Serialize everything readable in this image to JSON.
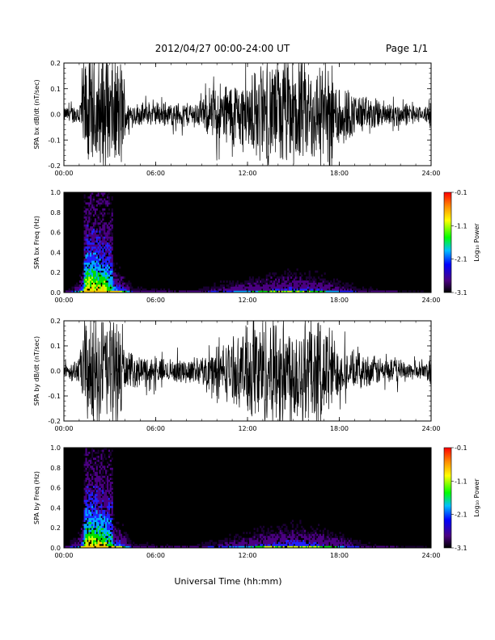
{
  "header": {
    "title": "2012/04/27  00:00-24:00 UT",
    "page": "Page 1/1"
  },
  "footer": {
    "xlabel": "Universal Time (hh:mm)"
  },
  "chart_data": [
    {
      "type": "line",
      "ylabel": "SPA bx dB/dt (nT/sec)",
      "xlim": [
        0,
        24
      ],
      "ylim": [
        -0.2,
        0.2
      ],
      "x_ticks": [
        "00:00",
        "06:00",
        "12:00",
        "18:00",
        "24:00"
      ],
      "y_ticks": [
        "0.2",
        "0.1",
        "0.0",
        "-0.1",
        "-0.2"
      ],
      "envelope": {
        "x_hours": [
          0,
          1,
          1.3,
          3.8,
          4.2,
          7,
          9,
          10,
          12,
          13,
          14.5,
          16,
          17.5,
          19,
          21,
          22.5,
          23.5,
          24
        ],
        "amplitude": [
          0.03,
          0.05,
          0.25,
          0.25,
          0.05,
          0.05,
          0.06,
          0.14,
          0.16,
          0.22,
          0.25,
          0.22,
          0.2,
          0.09,
          0.06,
          0.05,
          0.03,
          0.07
        ]
      }
    },
    {
      "type": "heatmap",
      "ylabel": "SPA bx Freq (Hz)",
      "xlim": [
        0,
        24
      ],
      "ylim": [
        0.0,
        1.0
      ],
      "x_ticks": [
        "00:00",
        "06:00",
        "12:00",
        "18:00",
        "24:00"
      ],
      "y_ticks": [
        "1.0",
        "0.8",
        "0.6",
        "0.4",
        "0.2",
        "0.0"
      ],
      "colorbar": {
        "label": "Log₁₀ Power",
        "ticks": [
          "-0.1",
          "-1.1",
          "-2.1",
          "-3.1"
        ],
        "range": [
          -3.1,
          -0.1
        ]
      },
      "activity": {
        "x_hours": [
          0,
          1,
          1.5,
          2.5,
          3.5,
          4.5,
          8,
          10,
          12,
          13.5,
          15,
          16.5,
          18,
          19.5,
          22,
          24
        ],
        "level": [
          0.05,
          0.3,
          1.0,
          0.9,
          0.6,
          0.15,
          0.1,
          0.2,
          0.3,
          0.4,
          0.45,
          0.4,
          0.25,
          0.15,
          0.08,
          0.05
        ]
      }
    },
    {
      "type": "line",
      "ylabel": "SPA by dB/dt (nT/sec)",
      "xlim": [
        0,
        24
      ],
      "ylim": [
        -0.2,
        0.2
      ],
      "x_ticks": [
        "00:00",
        "06:00",
        "12:00",
        "18:00",
        "24:00"
      ],
      "y_ticks": [
        "0.2",
        "0.1",
        "0.0",
        "-0.1",
        "-0.2"
      ],
      "envelope": {
        "x_hours": [
          0,
          1,
          1.4,
          3.8,
          4.0,
          7,
          9,
          10,
          11.5,
          12.4,
          14,
          16,
          17.4,
          18,
          20,
          22,
          23.5,
          24
        ],
        "amplitude": [
          0.03,
          0.06,
          0.25,
          0.25,
          0.08,
          0.05,
          0.06,
          0.12,
          0.15,
          0.25,
          0.25,
          0.25,
          0.22,
          0.1,
          0.07,
          0.05,
          0.03,
          0.07
        ]
      }
    },
    {
      "type": "heatmap",
      "ylabel": "SPA by Freq (Hz)",
      "xlim": [
        0,
        24
      ],
      "ylim": [
        0.0,
        1.0
      ],
      "x_ticks": [
        "00:00",
        "06:00",
        "12:00",
        "18:00",
        "24:00"
      ],
      "y_ticks": [
        "1.0",
        "0.8",
        "0.6",
        "0.4",
        "0.2",
        "0.0"
      ],
      "colorbar": {
        "label": "Log₁₀ Power",
        "ticks": [
          "-0.1",
          "-1.1",
          "-2.1",
          "-3.1"
        ],
        "range": [
          -3.1,
          -0.1
        ]
      },
      "activity": {
        "x_hours": [
          0,
          1,
          1.5,
          2.5,
          3.5,
          4.5,
          8,
          10,
          12,
          13.5,
          15,
          16.5,
          18,
          19.5,
          22,
          24
        ],
        "level": [
          0.05,
          0.3,
          1.0,
          0.9,
          0.6,
          0.15,
          0.1,
          0.2,
          0.3,
          0.45,
          0.5,
          0.45,
          0.3,
          0.15,
          0.08,
          0.05
        ]
      }
    }
  ]
}
